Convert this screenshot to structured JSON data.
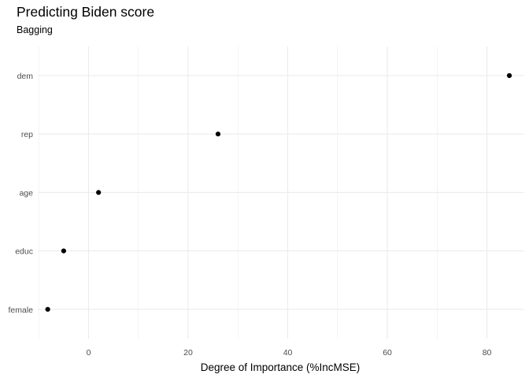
{
  "chart_data": {
    "type": "scatter",
    "title": "Predicting Biden score",
    "subtitle": "Bagging",
    "xlabel": "Degree of Importance (%IncMSE)",
    "ylabel": "",
    "categories": [
      "dem",
      "rep",
      "age",
      "educ",
      "female"
    ],
    "values": [
      84.5,
      26.0,
      2.0,
      -5.0,
      -8.2
    ],
    "xlim": [
      -10.2,
      87.5
    ],
    "xticks": [
      0,
      20,
      40,
      60,
      80
    ],
    "xtick_labels": [
      "0",
      "20",
      "40",
      "60",
      "80"
    ],
    "grid": true,
    "legend": "none",
    "point_color": "#000000",
    "grid_color": "#ebebeb"
  }
}
